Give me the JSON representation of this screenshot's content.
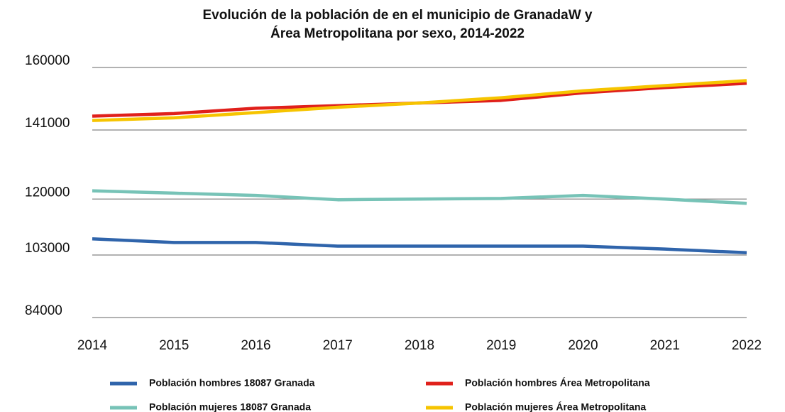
{
  "chart_data": {
    "type": "line",
    "title": [
      "Evolución de la población de en el municipio de GranadaW y",
      "Área Metropolitana por sexo, 2014-2022"
    ],
    "categories": [
      "2014",
      "2015",
      "2016",
      "2017",
      "2018",
      "2019",
      "2020",
      "2021",
      "2022"
    ],
    "series": [
      {
        "name": "Población hombres 18087 Granada",
        "color": "#2f64ab",
        "values": [
          107900,
          106800,
          106800,
          105700,
          105700,
          105700,
          105700,
          104800,
          103700
        ]
      },
      {
        "name": "Población hombres Área Metropolitana",
        "color": "#e0201b",
        "values": [
          145200,
          146000,
          147600,
          148400,
          149200,
          150000,
          152300,
          153900,
          155200
        ]
      },
      {
        "name": "Población mujeres 18087 Granada",
        "color": "#77c3b7",
        "values": [
          122500,
          121800,
          121100,
          119800,
          120000,
          120200,
          121100,
          120000,
          118700
        ]
      },
      {
        "name": "Población mujeres Área Metropolitana",
        "color": "#f6c400",
        "values": [
          143900,
          144700,
          146300,
          147900,
          149200,
          150800,
          152900,
          154500,
          156000
        ]
      }
    ],
    "ylim": [
      84000,
      160000
    ],
    "yticks": [
      160000,
      141000,
      120000,
      103000,
      84000
    ],
    "grid": true
  }
}
